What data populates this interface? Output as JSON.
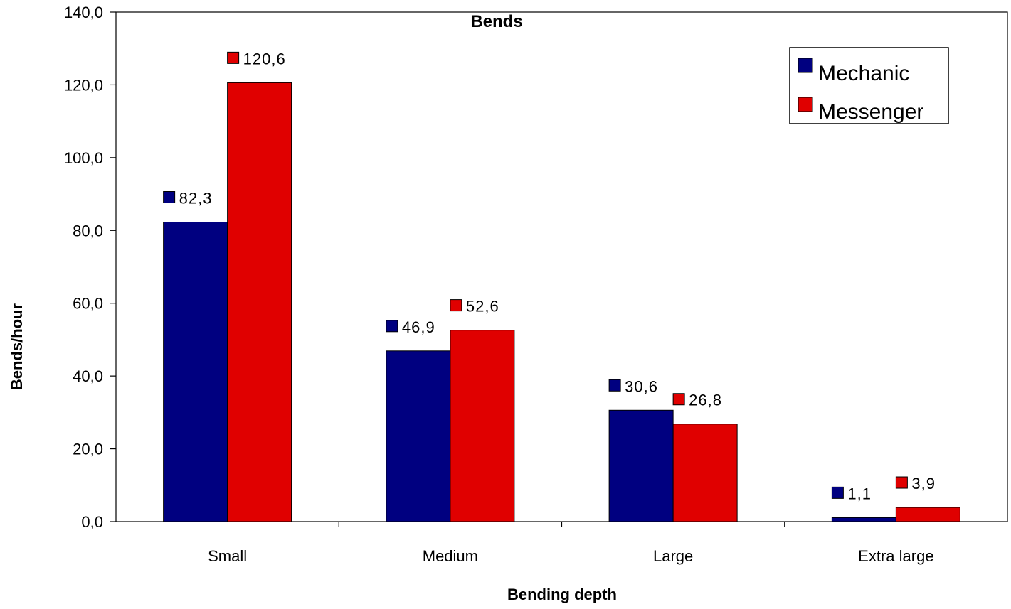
{
  "chart_data": {
    "type": "bar",
    "title": "Bends",
    "xlabel": "Bending depth",
    "ylabel": "Bends/hour",
    "categories": [
      "Small",
      "Medium",
      "Large",
      "Extra large"
    ],
    "series": [
      {
        "name": "Mechanic",
        "color": "#000080",
        "values": [
          82.3,
          46.9,
          30.6,
          1.1
        ],
        "labels": [
          "82,3",
          "46,9",
          "30,6",
          "1,1"
        ]
      },
      {
        "name": "Messenger",
        "color": "#e00000",
        "values": [
          120.6,
          52.6,
          26.8,
          3.9
        ],
        "labels": [
          "120,6",
          "52,6",
          "26,8",
          "3,9"
        ]
      }
    ],
    "ylim": [
      0,
      140
    ],
    "yticks": [
      0,
      20,
      40,
      60,
      80,
      100,
      120,
      140
    ],
    "ytick_labels": [
      "0,0",
      "20,0",
      "40,0",
      "60,0",
      "80,0",
      "100,0",
      "120,0",
      "140,0"
    ],
    "grid": false,
    "legend_position": "top-right"
  }
}
